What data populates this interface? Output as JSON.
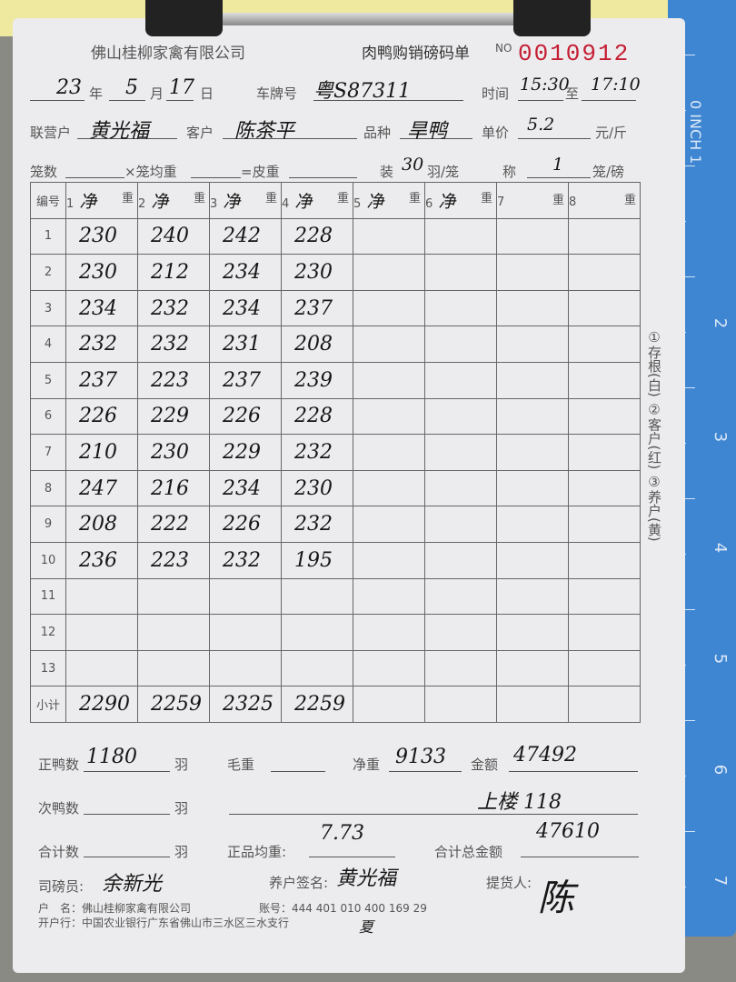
{
  "header": {
    "company": "佛山桂柳家禽有限公司",
    "form_title": "肉鸭购销磅码单",
    "no_label": "NO",
    "serial": "0010912"
  },
  "fields": {
    "year": "23",
    "year_label": "年",
    "month": "5",
    "month_label": "月",
    "day": "17",
    "day_label": "日",
    "plate_label": "车牌号",
    "plate": "粤S87311",
    "time_label": "时间",
    "time_from": "15:30",
    "to_label": "至",
    "time_to": "17:10",
    "partner_label": "联营户",
    "partner": "黄光福",
    "customer_label": "客户",
    "customer": "陈茶平",
    "breed_label": "品种",
    "breed": "旱鸭",
    "price_label": "单价",
    "price": "5.2",
    "price_unit": "元/斤",
    "cages_label": "笼数",
    "avg_cage_label": "×笼均重",
    "tare_label": "=皮重",
    "pack_label": "装",
    "pack": "30",
    "pack_unit": "羽/笼",
    "weigh_label": "称",
    "weigh": "1",
    "weigh_unit": "笼/磅"
  },
  "table": {
    "no_header": "编号",
    "columns": [
      {
        "n": "1",
        "mark": "净",
        "unit": "重"
      },
      {
        "n": "2",
        "mark": "净",
        "unit": "重"
      },
      {
        "n": "3",
        "mark": "净",
        "unit": "重"
      },
      {
        "n": "4",
        "mark": "净",
        "unit": "重"
      },
      {
        "n": "5",
        "mark": "净",
        "unit": "重"
      },
      {
        "n": "6",
        "mark": "净",
        "unit": "重"
      },
      {
        "n": "7",
        "mark": "",
        "unit": "重"
      },
      {
        "n": "8",
        "mark": "",
        "unit": "重"
      }
    ],
    "rows": [
      [
        "1",
        "230",
        "240",
        "242",
        "228"
      ],
      [
        "2",
        "230",
        "212",
        "234",
        "230"
      ],
      [
        "3",
        "234",
        "232",
        "234",
        "237"
      ],
      [
        "4",
        "232",
        "232",
        "231",
        "208"
      ],
      [
        "5",
        "237",
        "223",
        "237",
        "239"
      ],
      [
        "6",
        "226",
        "229",
        "226",
        "228"
      ],
      [
        "7",
        "210",
        "230",
        "229",
        "232"
      ],
      [
        "8",
        "247",
        "216",
        "234",
        "230"
      ],
      [
        "9",
        "208",
        "222",
        "226",
        "232"
      ],
      [
        "10",
        "236",
        "223",
        "232",
        "195"
      ],
      [
        "11"
      ],
      [
        "12"
      ],
      [
        "13"
      ]
    ],
    "subtotal_label": "小计",
    "subtotals": [
      "2290",
      "2259",
      "2325",
      "2259"
    ]
  },
  "side_note": "①存根(白) ②客户(红) ③养户(黄)",
  "summary": {
    "good_label": "正鸭数",
    "good": "1180",
    "unit": "羽",
    "gross_label": "毛重",
    "net_label": "净重",
    "net": "9133",
    "amount_label": "金额",
    "amount": "47492",
    "second_label": "次鸭数",
    "note": "上楼 118",
    "total_count_label": "合计数",
    "avg_label": "正品均重:",
    "avg": "7.73",
    "total_amount_label": "合计总金额",
    "total_amount": "47610",
    "weigher_label": "司磅员:",
    "weigher": "余新光",
    "farmer_sign_label": "养户签名:",
    "farmer_sign": "黄光福",
    "picker_label": "提货人:",
    "picker": "陈"
  },
  "footer": {
    "account_name": "户　名：佛山桂柳家禽有限公司",
    "account_no": "账号：444 401 010 400 169 29",
    "bank": "开户行：中国农业银行广东省佛山市三水区三水支行",
    "mark": "夏"
  },
  "ruler": {
    "label": "0 INCH 1",
    "numbers": [
      "2",
      "3",
      "4",
      "5",
      "6",
      "7"
    ]
  }
}
